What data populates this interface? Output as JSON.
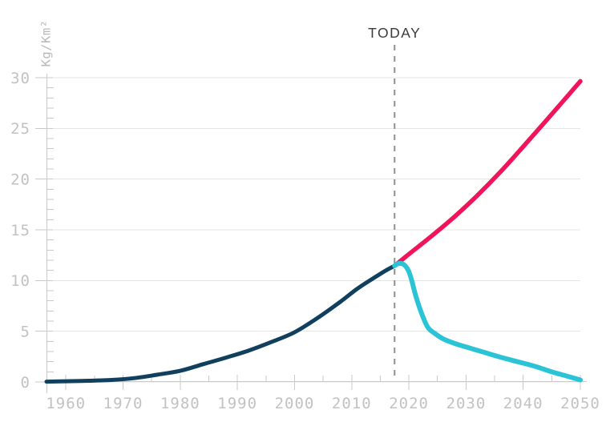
{
  "colors": {
    "background": "#ffffff",
    "grid": "#e5e5e5",
    "axis": "#c9c9c9",
    "tick_label": "#c2c2c2",
    "axis_title": "#b9b9b9",
    "annotation_text": "#3a3a3a",
    "dashed_line": "#8f8f8f"
  },
  "chart_data": {
    "type": "line",
    "title": "",
    "xlabel": "",
    "ylabel": "Kg/Km²",
    "xlim": [
      1956.6,
      2050
    ],
    "ylim": [
      0,
      30
    ],
    "grid": "horizontal-major-only",
    "legend": "none",
    "x_ticks": [
      1960,
      1970,
      1980,
      1990,
      2000,
      2010,
      2020,
      2030,
      2040,
      2050
    ],
    "x_minor_ticks": [
      1965,
      1975,
      1985,
      1995,
      2005,
      2015,
      2025,
      2035,
      2045
    ],
    "y_ticks": [
      0,
      5,
      10,
      15,
      20,
      25,
      30
    ],
    "y_minor_step": 1,
    "annotation_label": "TODAY",
    "annotation_x": 2017.5,
    "series": [
      {
        "name": "historical-dark-line",
        "color": "#10405e",
        "width": 5,
        "points": [
          [
            1956.6,
            0.03
          ],
          [
            1960,
            0.07
          ],
          [
            1964,
            0.12
          ],
          [
            1968,
            0.2
          ],
          [
            1972,
            0.38
          ],
          [
            1976,
            0.72
          ],
          [
            1980,
            1.1
          ],
          [
            1984,
            1.75
          ],
          [
            1988,
            2.4
          ],
          [
            1992,
            3.1
          ],
          [
            1996,
            3.95
          ],
          [
            2000,
            4.9
          ],
          [
            2004,
            6.3
          ],
          [
            2008,
            7.9
          ],
          [
            2011,
            9.2
          ],
          [
            2014,
            10.3
          ],
          [
            2016,
            11.0
          ],
          [
            2017.5,
            11.45
          ]
        ]
      },
      {
        "name": "rising-red-projection",
        "color": "#f0155a",
        "width": 5.5,
        "points": [
          [
            2017.5,
            11.45
          ],
          [
            2020,
            12.6
          ],
          [
            2024,
            14.4
          ],
          [
            2028,
            16.3
          ],
          [
            2032,
            18.4
          ],
          [
            2036,
            20.7
          ],
          [
            2040,
            23.2
          ],
          [
            2045,
            26.4
          ],
          [
            2050,
            29.65
          ]
        ]
      },
      {
        "name": "declining-cyan-projection",
        "color": "#2bc4d7",
        "width": 6,
        "points": [
          [
            2017.5,
            11.45
          ],
          [
            2018.2,
            11.68
          ],
          [
            2019.1,
            11.58
          ],
          [
            2019.9,
            11.0
          ],
          [
            2020.5,
            10.0
          ],
          [
            2021.2,
            8.5
          ],
          [
            2022.2,
            6.8
          ],
          [
            2023.3,
            5.4
          ],
          [
            2024.5,
            4.8
          ],
          [
            2026,
            4.25
          ],
          [
            2028,
            3.8
          ],
          [
            2030,
            3.45
          ],
          [
            2033,
            2.95
          ],
          [
            2036,
            2.45
          ],
          [
            2039,
            2.0
          ],
          [
            2042,
            1.55
          ],
          [
            2045,
            1.0
          ],
          [
            2047.5,
            0.6
          ],
          [
            2050,
            0.2
          ]
        ]
      }
    ]
  }
}
